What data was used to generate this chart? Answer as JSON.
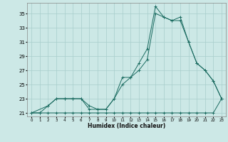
{
  "xlabel": "Humidex (Indice chaleur)",
  "bg_color": "#cce8e6",
  "grid_color": "#a8cecc",
  "line_color": "#1a6b60",
  "xlim": [
    -0.5,
    23.5
  ],
  "ylim": [
    20.5,
    36.5
  ],
  "yticks": [
    21,
    23,
    25,
    27,
    29,
    31,
    33,
    35
  ],
  "xticks": [
    0,
    1,
    2,
    3,
    4,
    5,
    6,
    7,
    8,
    9,
    10,
    11,
    12,
    13,
    14,
    15,
    16,
    17,
    18,
    19,
    20,
    21,
    22,
    23
  ],
  "line1_x": [
    0,
    1,
    2,
    3,
    4,
    5,
    6,
    7,
    8,
    9,
    10,
    11,
    12,
    13,
    14,
    15,
    16,
    17,
    18,
    19,
    20,
    21,
    22,
    23
  ],
  "line1_y": [
    21,
    21,
    22,
    23,
    23,
    23,
    23,
    22,
    21.5,
    21.5,
    23,
    26,
    26,
    28,
    30,
    36,
    34.5,
    34,
    34,
    31,
    28,
    27,
    25.5,
    23
  ],
  "line2_x": [
    0,
    1,
    2,
    3,
    4,
    5,
    6,
    7,
    8,
    9,
    10,
    11,
    12,
    13,
    14,
    15,
    16,
    17,
    18,
    19,
    20,
    21,
    22,
    23
  ],
  "line2_y": [
    21,
    21,
    21,
    21,
    21,
    21,
    21,
    21,
    21,
    21,
    21,
    21,
    21,
    21,
    21,
    21,
    21,
    21,
    21,
    21,
    21,
    21,
    21,
    23
  ],
  "line3_x": [
    0,
    2,
    3,
    4,
    5,
    6,
    7,
    8,
    9,
    10,
    11,
    12,
    13,
    14,
    15,
    16,
    17,
    18,
    19,
    20,
    21,
    22,
    23
  ],
  "line3_y": [
    21,
    22,
    23,
    23,
    23,
    23,
    21.5,
    21.5,
    21.5,
    23,
    25,
    26,
    27,
    28.5,
    35,
    34.5,
    34,
    34.5,
    31,
    28,
    27,
    25.5,
    23
  ]
}
